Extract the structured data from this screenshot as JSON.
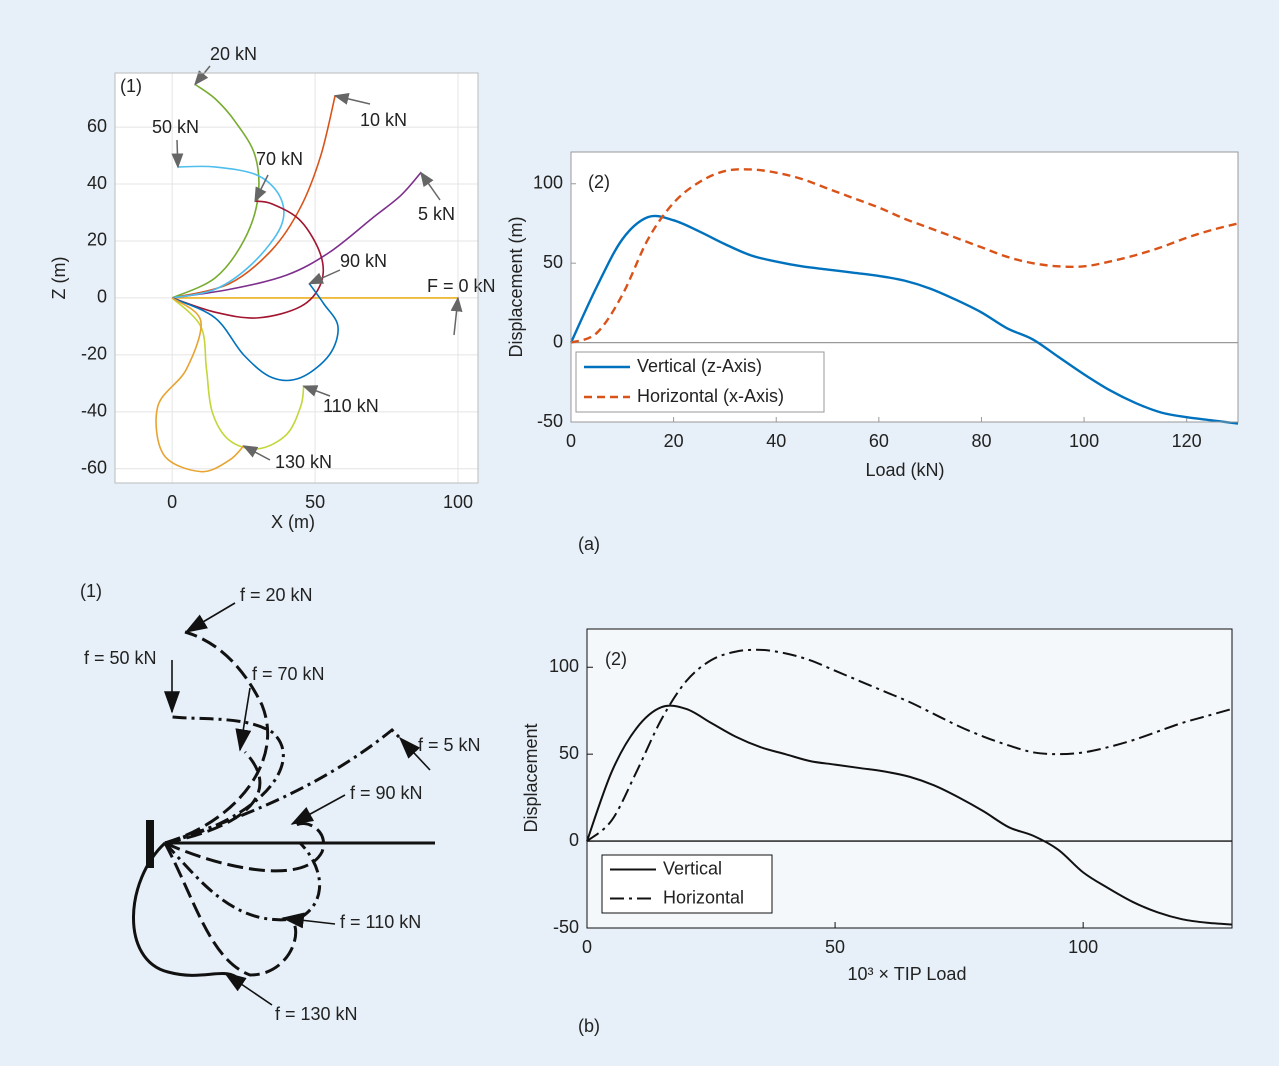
{
  "chart_data": [
    {
      "type": "line",
      "annotation": "(1)",
      "x_label": "X (m)",
      "y_label": "Z (m)",
      "xlim": [
        -20,
        107
      ],
      "ylim": [
        -65,
        79
      ],
      "xticks": [
        0,
        50,
        100
      ],
      "yticks": [
        -60,
        -40,
        -20,
        0,
        20,
        40,
        60
      ],
      "grid": true,
      "series": [
        {
          "name": "F = 0 kN",
          "color": "#edb120",
          "x": [
            0,
            50,
            100
          ],
          "values": [
            0,
            0,
            0
          ]
        },
        {
          "name": "5 kN",
          "color": "#7e2f8e",
          "x": [
            0,
            20,
            40,
            55,
            70,
            80,
            87
          ],
          "values": [
            0,
            3,
            8,
            16,
            28,
            36,
            44
          ]
        },
        {
          "name": "10 kN",
          "color": "#d95319",
          "x": [
            0,
            20,
            35,
            45,
            52,
            57
          ],
          "values": [
            0,
            5,
            17,
            32,
            50,
            71
          ]
        },
        {
          "name": "20 kN",
          "color": "#77ac30",
          "x": [
            0,
            15,
            25,
            30,
            29,
            22,
            15,
            8
          ],
          "values": [
            0,
            7,
            20,
            35,
            50,
            62,
            70,
            75
          ]
        },
        {
          "name": "50 kN",
          "color": "#4dbeee",
          "x": [
            0,
            15,
            28,
            38,
            38,
            30,
            15,
            2
          ],
          "values": [
            0,
            3,
            12,
            25,
            35,
            43,
            46,
            46
          ]
        },
        {
          "name": "70 kN",
          "color": "#a2142f",
          "x": [
            0,
            15,
            30,
            45,
            52,
            52,
            45,
            35,
            29
          ],
          "values": [
            0,
            -5,
            -7,
            -3,
            5,
            15,
            27,
            33,
            34
          ]
        },
        {
          "name": "90 kN",
          "color": "#0072bd",
          "x": [
            0,
            15,
            25,
            35,
            45,
            55,
            58,
            53,
            48
          ],
          "values": [
            0,
            -7,
            -20,
            -28,
            -28,
            -20,
            -10,
            -2,
            5
          ]
        },
        {
          "name": "110 kN",
          "color": "#c3d63a",
          "x": [
            0,
            10,
            12,
            14,
            20,
            30,
            40,
            45,
            46
          ],
          "values": [
            0,
            -10,
            -25,
            -40,
            -50,
            -53,
            -48,
            -38,
            -31
          ]
        },
        {
          "name": "130 kN",
          "color": "#e8a330",
          "x": [
            0,
            10,
            5,
            -5,
            -3,
            10,
            20,
            25
          ],
          "values": [
            0,
            -8,
            -25,
            -38,
            -55,
            -61,
            -57,
            -52
          ]
        }
      ]
    },
    {
      "type": "line",
      "annotation": "(2)",
      "x_label": "Load (kN)",
      "y_label": "Displacement (m)",
      "x": [
        0,
        5,
        10,
        15,
        20,
        25,
        30,
        35,
        40,
        45,
        50,
        55,
        60,
        65,
        70,
        75,
        80,
        85,
        90,
        95,
        100,
        105,
        110,
        115,
        120,
        125,
        130
      ],
      "xlim": [
        0,
        130
      ],
      "ylim": [
        -50,
        120
      ],
      "xticks": [
        0,
        20,
        40,
        60,
        80,
        100,
        120
      ],
      "yticks": [
        -50,
        0,
        50,
        100
      ],
      "zero_line": true,
      "legend": "lower left",
      "series": [
        {
          "name": "Vertical (z-Axis)",
          "color": "#0072bd",
          "dash": "solid",
          "values": [
            0,
            35,
            65,
            79,
            77,
            70,
            62,
            55,
            51,
            48,
            46,
            44,
            42,
            39,
            34,
            27,
            19,
            9,
            2,
            -9,
            -20,
            -30,
            -38,
            -44,
            -47,
            -49,
            -51
          ]
        },
        {
          "name": "Horizontal (x-Axis)",
          "color": "#d95319",
          "dash": "dashed",
          "values": [
            0,
            6,
            30,
            65,
            88,
            101,
            108,
            109,
            107,
            103,
            97,
            91,
            85,
            78,
            72,
            66,
            60,
            54,
            50,
            48,
            48,
            51,
            55,
            60,
            66,
            71,
            75
          ]
        }
      ]
    },
    {
      "type": "line",
      "annotation": "(2)",
      "x_label": "10³ × TIP Load",
      "y_label": "Displacement",
      "x": [
        0,
        5,
        10,
        15,
        20,
        25,
        30,
        35,
        40,
        45,
        50,
        55,
        60,
        65,
        70,
        75,
        80,
        85,
        90,
        95,
        100,
        105,
        110,
        115,
        120,
        125,
        130
      ],
      "xlim": [
        0,
        130
      ],
      "ylim": [
        -50,
        122
      ],
      "xticks": [
        0,
        50,
        100
      ],
      "yticks": [
        -50,
        0,
        50,
        100
      ],
      "zero_line": true,
      "legend": "lower left",
      "series": [
        {
          "name": "Vertical",
          "color": "#111111",
          "dash": "solid",
          "values": [
            0,
            40,
            65,
            77,
            76,
            68,
            60,
            54,
            50,
            46,
            44,
            42,
            40,
            37,
            32,
            25,
            17,
            8,
            3,
            -5,
            -18,
            -27,
            -35,
            -41,
            -45,
            -47,
            -48
          ]
        },
        {
          "name": "Horizontal",
          "color": "#111111",
          "dash": "dashdot",
          "values": [
            0,
            12,
            40,
            70,
            92,
            104,
            109,
            110,
            108,
            104,
            98,
            92,
            86,
            80,
            73,
            66,
            60,
            55,
            51,
            50,
            51,
            54,
            58,
            63,
            68,
            72,
            76
          ]
        }
      ]
    }
  ],
  "captions": [
    "(a)",
    "(b)"
  ],
  "diagram": {
    "annotation": "(1)",
    "labels": [
      "f = 20 kN",
      "f = 50 kN",
      "f = 70 kN",
      "f = 5 kN",
      "f = 90 kN",
      "f = 110 kN",
      "f = 130 kN"
    ]
  }
}
